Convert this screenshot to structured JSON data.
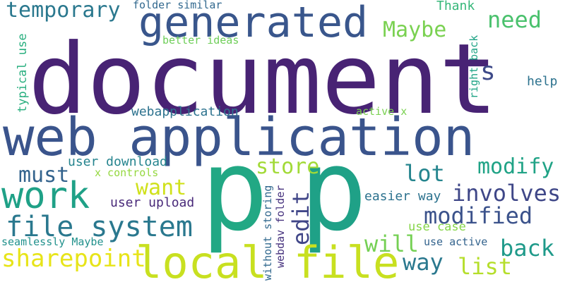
{
  "words": [
    {
      "text": "document",
      "color": "#482374"
    },
    {
      "text": "web application",
      "color": "#3a548c"
    },
    {
      "text": "generated",
      "color": "#39568c"
    },
    {
      "text": "p",
      "color": "#22a884"
    },
    {
      "text": "p",
      "color": "#1fa187"
    },
    {
      "text": "local file",
      "color": "#c8e020"
    },
    {
      "text": "work",
      "color": "#1fa187"
    },
    {
      "text": "file system",
      "color": "#2a788e"
    },
    {
      "text": "temporary",
      "color": "#2a788e"
    },
    {
      "text": "Maybe",
      "color": "#7ad151"
    },
    {
      "text": "need",
      "color": "#4ac16d"
    },
    {
      "text": "s",
      "color": "#3e4a89"
    },
    {
      "text": "help",
      "color": "#2c728e"
    },
    {
      "text": "store",
      "color": "#a2da37"
    },
    {
      "text": "lot",
      "color": "#25858e"
    },
    {
      "text": "modify",
      "color": "#20a386"
    },
    {
      "text": "involves",
      "color": "#3f4788"
    },
    {
      "text": "modified",
      "color": "#3b528b"
    },
    {
      "text": "back",
      "color": "#1f9a8a"
    },
    {
      "text": "want",
      "color": "#d0e11c"
    },
    {
      "text": "must",
      "color": "#33638d"
    },
    {
      "text": "user upload",
      "color": "#482979"
    },
    {
      "text": "user download",
      "color": "#25848e"
    },
    {
      "text": "x controls",
      "color": "#95d840"
    },
    {
      "text": "edit",
      "color": "#404688"
    },
    {
      "text": "sharepoint",
      "color": "#e7e419"
    },
    {
      "text": "will",
      "color": "#75d054"
    },
    {
      "text": "way",
      "color": "#2a788e"
    },
    {
      "text": "list",
      "color": "#b5de2b"
    },
    {
      "text": "use case",
      "color": "#86d549"
    },
    {
      "text": "use active",
      "color": "#33638d"
    },
    {
      "text": "seamlessly Maybe",
      "color": "#21918c"
    },
    {
      "text": "easier way",
      "color": "#2c728e"
    },
    {
      "text": "webapplication",
      "color": "#2c728e"
    },
    {
      "text": "active x",
      "color": "#7ad151"
    },
    {
      "text": "folder similar",
      "color": "#31688e"
    },
    {
      "text": "Thank",
      "color": "#35b779"
    },
    {
      "text": "better ideas",
      "color": "#6ece58"
    },
    {
      "text": "typical use",
      "color": "#29af7f"
    },
    {
      "text": "right back",
      "color": "#20a486"
    },
    {
      "text": "without storing",
      "color": "#31688e"
    },
    {
      "text": "webdav folder",
      "color": "#46327e"
    }
  ]
}
